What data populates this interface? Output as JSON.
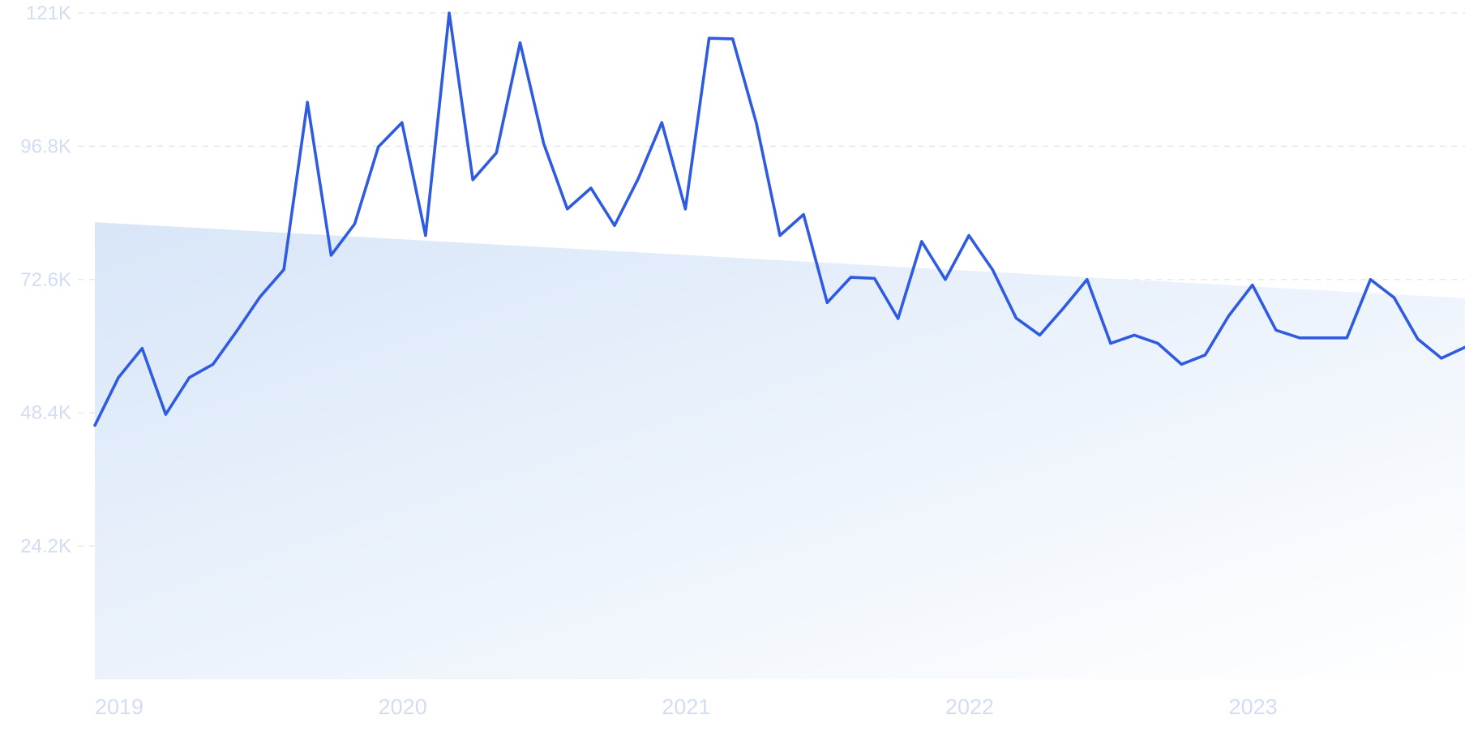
{
  "chart_data": {
    "type": "line",
    "title": "",
    "xlabel": "",
    "ylabel": "",
    "grid": true,
    "legend": "none",
    "y_ticks": [
      "24.2K",
      "48.4K",
      "72.6K",
      "96.8K",
      "121K"
    ],
    "x_ticks": [
      "2019",
      "2020",
      "2021",
      "2022",
      "2023"
    ],
    "ylim": [
      0,
      121000
    ],
    "xlim": [
      "2019-01",
      "2023-11"
    ],
    "series": [
      {
        "color": "#2f5be0",
        "x": [
          "2019-01",
          "2019-02",
          "2019-03",
          "2019-04",
          "2019-05",
          "2019-06",
          "2019-07",
          "2019-08",
          "2019-09",
          "2019-10",
          "2019-11",
          "2019-12",
          "2020-01",
          "2020-02",
          "2020-03",
          "2020-04",
          "2020-05",
          "2020-06",
          "2020-07",
          "2020-08",
          "2020-09",
          "2020-10",
          "2020-11",
          "2020-12",
          "2021-01",
          "2021-02",
          "2021-03",
          "2021-04",
          "2021-05",
          "2021-06",
          "2021-07",
          "2021-08",
          "2021-09",
          "2021-10",
          "2021-11",
          "2021-12",
          "2022-01",
          "2022-02",
          "2022-03",
          "2022-04",
          "2022-05",
          "2022-06",
          "2022-07",
          "2022-08",
          "2022-09",
          "2022-10",
          "2022-11",
          "2022-12",
          "2023-01",
          "2023-02",
          "2023-03",
          "2023-04",
          "2023-05",
          "2023-06",
          "2023-07",
          "2023-08",
          "2023-09",
          "2023-10",
          "2023-11"
        ],
        "values": [
          46100,
          54800,
          60100,
          48100,
          54800,
          57200,
          63200,
          69500,
          74400,
          104800,
          77000,
          82700,
          96700,
          101100,
          80600,
          121000,
          90700,
          95600,
          115600,
          97300,
          85400,
          89200,
          82400,
          90900,
          101100,
          85400,
          116400,
          116300,
          101000,
          80600,
          84400,
          68400,
          73000,
          72800,
          65500,
          79500,
          72600,
          80600,
          74400,
          65600,
          62500,
          67400,
          72600,
          61000,
          62500,
          61000,
          57200,
          58900,
          66000,
          71600,
          63400,
          62000,
          62000,
          62000,
          72600,
          69300,
          61800,
          58300,
          60300
        ]
      }
    ],
    "trend": {
      "color": "#dde9f9",
      "start": 83000,
      "end": 69200
    }
  }
}
